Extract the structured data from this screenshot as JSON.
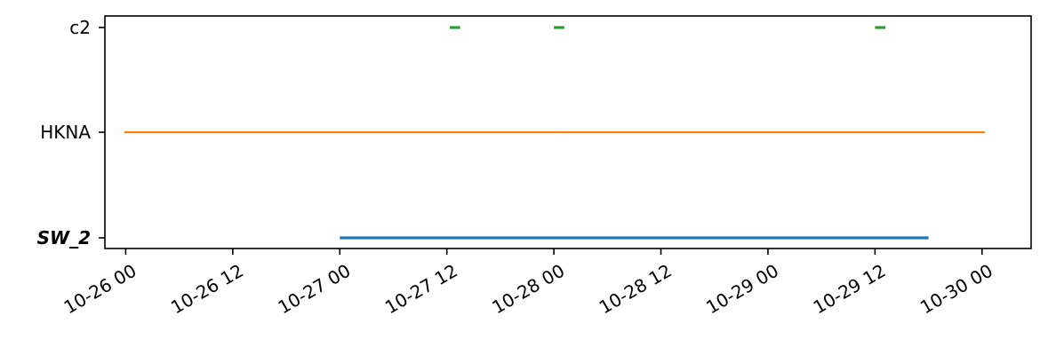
{
  "chart_data": {
    "type": "timeline",
    "title": "",
    "xlabel": "",
    "ylabel": "",
    "x_type": "datetime",
    "xlim": [
      "2023-10-25 21:40",
      "2023-10-30 05:30"
    ],
    "x_ticks": [
      {
        "value": "2023-10-26 00:00",
        "label": "10-26 00"
      },
      {
        "value": "2023-10-26 12:00",
        "label": "10-26 12"
      },
      {
        "value": "2023-10-27 00:00",
        "label": "10-27 00"
      },
      {
        "value": "2023-10-27 12:00",
        "label": "10-27 12"
      },
      {
        "value": "2023-10-28 00:00",
        "label": "10-28 00"
      },
      {
        "value": "2023-10-28 12:00",
        "label": "10-28 12"
      },
      {
        "value": "2023-10-29 00:00",
        "label": "10-29 00"
      },
      {
        "value": "2023-10-29 12:00",
        "label": "10-29 12"
      },
      {
        "value": "2023-10-30 00:00",
        "label": "10-30 00"
      }
    ],
    "categories": [
      "SW_2",
      "HKNA",
      "c2"
    ],
    "grid": false,
    "legend": "none",
    "series": [
      {
        "category": "SW_2",
        "color": "#1f77b4",
        "bold_label": true,
        "intervals": [
          [
            "2023-10-27 00:00",
            "2023-10-29 18:00"
          ]
        ]
      },
      {
        "category": "HKNA",
        "color": "#ff7f0e",
        "bold_label": false,
        "intervals": [
          [
            "2023-10-25 23:50",
            "2023-10-28 00:10"
          ],
          [
            "2023-10-28 00:10",
            "2023-10-30 00:20"
          ]
        ]
      },
      {
        "category": "c2",
        "color": "#2ca02c",
        "bold_label": false,
        "intervals": [
          [
            "2023-10-27 12:20",
            "2023-10-27 13:30"
          ],
          [
            "2023-10-28 00:00",
            "2023-10-28 01:10"
          ],
          [
            "2023-10-29 12:00",
            "2023-10-29 13:10"
          ]
        ]
      }
    ]
  }
}
